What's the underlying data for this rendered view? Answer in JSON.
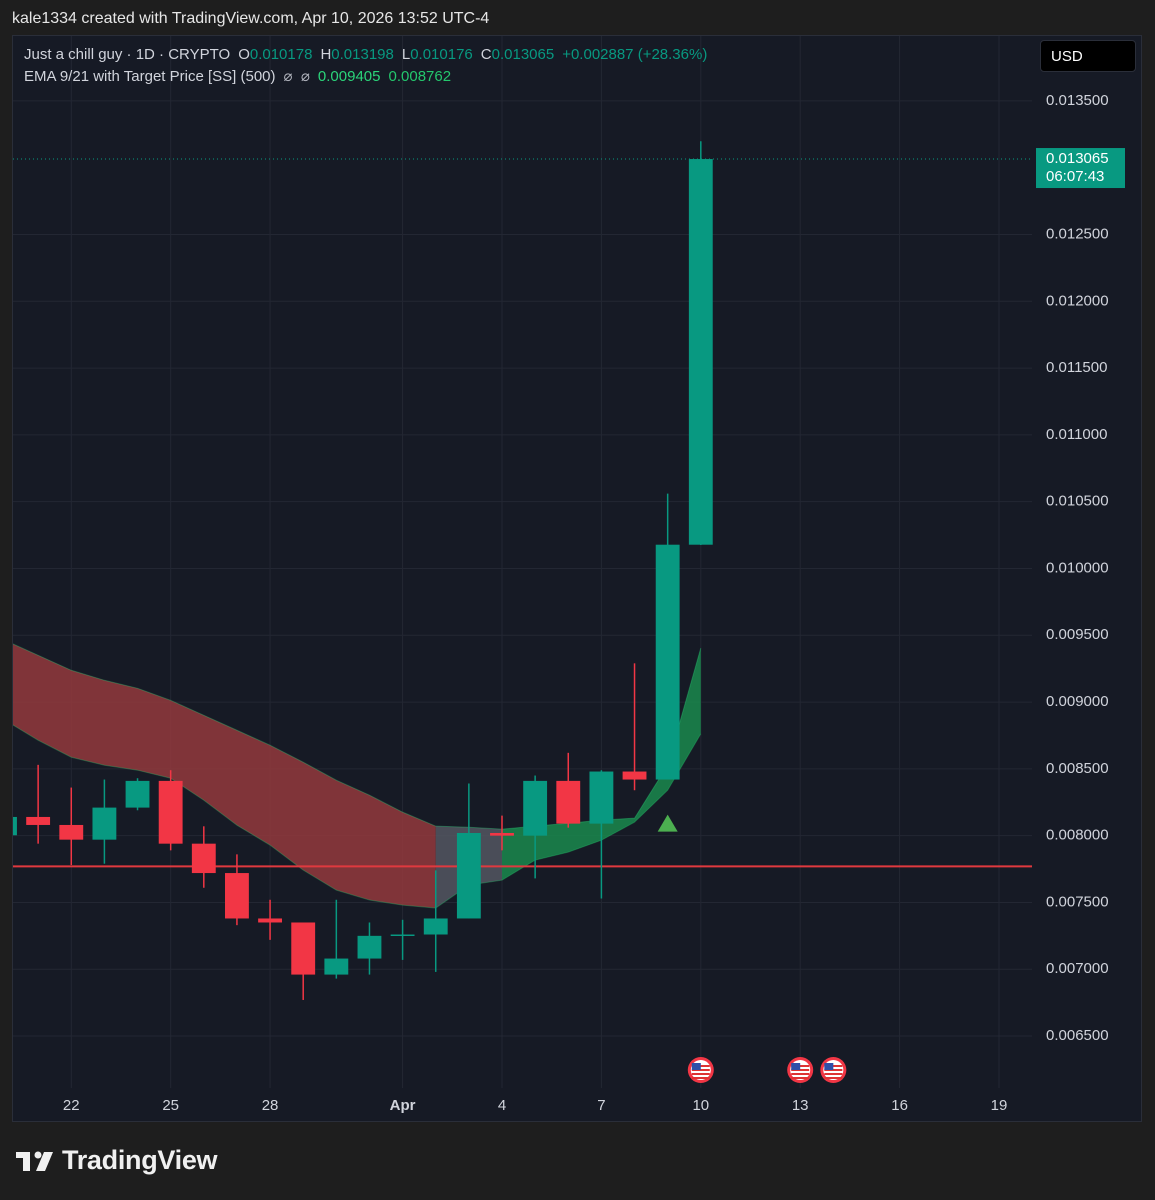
{
  "header": {
    "text": "kale1334 created with TradingView.com, Apr 10, 2026 13:52 UTC-4"
  },
  "chart_data": {
    "type": "candlestick",
    "symbol": "Just a chill guy · 1D · CRYPTO",
    "ohlc_labels": [
      "O",
      "H",
      "L",
      "C"
    ],
    "change": "+0.002887 (+28.36%)",
    "currency": "USD",
    "countdown": "06:07:43",
    "x": [
      "2026-03-20",
      "2026-03-21",
      "2026-03-22",
      "2026-03-23",
      "2026-03-24",
      "2026-03-25",
      "2026-03-26",
      "2026-03-27",
      "2026-03-28",
      "2026-03-29",
      "2026-03-30",
      "2026-03-31",
      "2026-04-01",
      "2026-04-02",
      "2026-04-03",
      "2026-04-04",
      "2026-04-05",
      "2026-04-06",
      "2026-04-07",
      "2026-04-08",
      "2026-04-09",
      "2026-04-10"
    ],
    "open": [
      0.008003,
      0.00814,
      0.00808,
      0.00797,
      0.00821,
      0.00841,
      0.00794,
      0.00772,
      0.00738,
      0.00735,
      0.00696,
      0.00708,
      0.00725,
      0.00726,
      0.00738,
      0.00802,
      0.008,
      0.00841,
      0.00809,
      0.00848,
      0.00842,
      0.010178
    ],
    "high": [
      0.00815,
      0.00853,
      0.00836,
      0.00842,
      0.00843,
      0.00849,
      0.00807,
      0.00786,
      0.00752,
      0.00735,
      0.00752,
      0.00735,
      0.00737,
      0.00774,
      0.00839,
      0.00815,
      0.00845,
      0.00862,
      0.00849,
      0.00929,
      0.01056,
      0.013198
    ],
    "low": [
      0.008,
      0.00794,
      0.00778,
      0.00779,
      0.00819,
      0.00789,
      0.00761,
      0.00733,
      0.00722,
      0.00677,
      0.00693,
      0.00696,
      0.00707,
      0.00698,
      0.00738,
      0.00789,
      0.00768,
      0.00806,
      0.00753,
      0.00834,
      0.00842,
      0.010176
    ],
    "close": [
      0.00814,
      0.00808,
      0.00797,
      0.00821,
      0.00841,
      0.00794,
      0.00772,
      0.00738,
      0.00735,
      0.00696,
      0.00708,
      0.00725,
      0.00726,
      0.00738,
      0.00802,
      0.008,
      0.00841,
      0.00809,
      0.00848,
      0.00842,
      0.010178,
      0.013065
    ],
    "up_color": "#089981",
    "down_color": "#f23645",
    "indicator": {
      "name": "EMA 9/21 with Target Price [SS] (500)",
      "icons": "⌀  ⌀"
    },
    "series": [
      {
        "color": "#2bd47a",
        "values": [
          0.009462,
          0.00935,
          0.009238,
          0.009163,
          0.009103,
          0.009013,
          0.008901,
          0.008789,
          0.008677,
          0.00855,
          0.008415,
          0.008303,
          0.008176,
          0.008071,
          0.008063,
          0.008049,
          0.008071,
          0.008093,
          0.008116,
          0.008131,
          0.008527,
          0.009405
        ]
      },
      {
        "color": "#24c76d",
        "values": [
          0.008864,
          0.008714,
          0.008587,
          0.008527,
          0.00849,
          0.00843,
          0.008265,
          0.008078,
          0.007929,
          0.007742,
          0.007592,
          0.007518,
          0.00748,
          0.007458,
          0.00763,
          0.007667,
          0.007817,
          0.007877,
          0.007966,
          0.008101,
          0.00834,
          0.008762
        ]
      }
    ],
    "band_segments": [
      {
        "from": "2026-03-20",
        "to": "2026-04-02",
        "color": "#93393d"
      },
      {
        "from": "2026-04-02",
        "to": "2026-04-04",
        "color": "#545762"
      },
      {
        "from": "2026-04-04",
        "to": "2026-04-10",
        "color": "#1a8a4e"
      }
    ],
    "hlines": [
      {
        "value": 0.00777,
        "color": "#e0393f"
      }
    ],
    "signals": [
      {
        "x": "2026-04-09",
        "value": 0.00809,
        "color": "#4caf50"
      }
    ],
    "events": [
      "2026-04-10",
      "2026-04-13",
      "2026-04-14"
    ],
    "xlim": [
      "2026-03-20",
      "2026-04-19"
    ],
    "ylim": [
      0.006111,
      0.013986
    ],
    "yticks": [
      {
        "value": 0.0065,
        "label": "0.006500"
      },
      {
        "value": 0.007,
        "label": "0.007000"
      },
      {
        "value": 0.0075,
        "label": "0.007500"
      },
      {
        "value": 0.008,
        "label": "0.008000"
      },
      {
        "value": 0.0085,
        "label": "0.008500"
      },
      {
        "value": 0.009,
        "label": "0.009000"
      },
      {
        "value": 0.0095,
        "label": "0.009500"
      },
      {
        "value": 0.01,
        "label": "0.010000"
      },
      {
        "value": 0.0105,
        "label": "0.010500"
      },
      {
        "value": 0.011,
        "label": "0.011000"
      },
      {
        "value": 0.0115,
        "label": "0.011500"
      },
      {
        "value": 0.012,
        "label": "0.012000"
      },
      {
        "value": 0.0125,
        "label": "0.012500"
      },
      {
        "value": 0.0135,
        "label": "0.013500"
      }
    ],
    "xticks": [
      {
        "value": "2026-03-22",
        "label": "22"
      },
      {
        "value": "2026-03-25",
        "label": "25"
      },
      {
        "value": "2026-03-28",
        "label": "28"
      },
      {
        "value": "2026-04-01",
        "label": "Apr"
      },
      {
        "value": "2026-04-04",
        "label": "4"
      },
      {
        "value": "2026-04-07",
        "label": "7"
      },
      {
        "value": "2026-04-10",
        "label": "10"
      },
      {
        "value": "2026-04-13",
        "label": "13"
      },
      {
        "value": "2026-04-16",
        "label": "16"
      },
      {
        "value": "2026-04-19",
        "label": "19"
      }
    ],
    "grid": true
  },
  "footer": {
    "logo_text": "TradingView"
  }
}
